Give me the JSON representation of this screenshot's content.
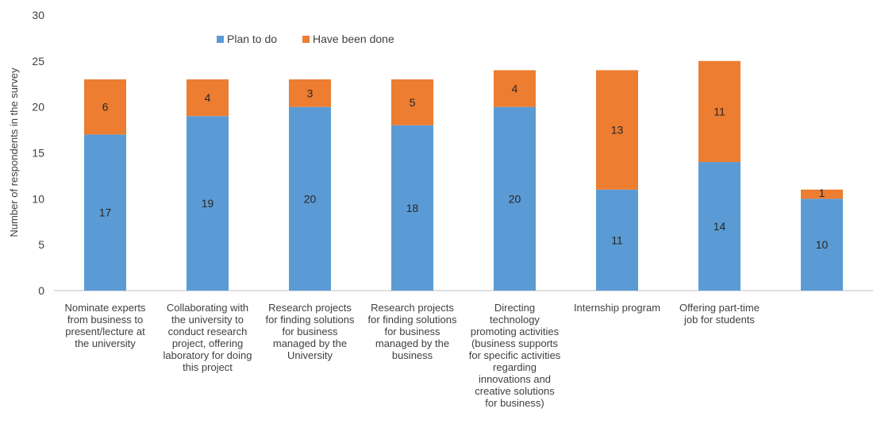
{
  "chart_data": {
    "type": "bar",
    "stacked": true,
    "title": "",
    "xlabel": "",
    "ylabel": "Number of respondents in the survey",
    "ylim": [
      0,
      30
    ],
    "yticks": [
      0,
      5,
      10,
      15,
      20,
      25,
      30
    ],
    "grid": false,
    "legend_position": "top-center",
    "categories": [
      [
        "Nominate experts",
        "from business to",
        "present/lecture at",
        "the university"
      ],
      [
        "Collaborating with",
        "the university to",
        "conduct research",
        "project, offering",
        "laboratory for doing",
        "this project"
      ],
      [
        "Research projects",
        "for finding solutions",
        "for business",
        "managed by the",
        "University"
      ],
      [
        "Research projects",
        "for finding solutions",
        "for business",
        "managed by the",
        "business"
      ],
      [
        "Directing",
        "technology",
        "promoting activities",
        "(business supports",
        "for specific activities",
        "regarding",
        "innovations and",
        "creative solutions",
        "for business)"
      ],
      [
        "Internship program"
      ],
      [
        "Offering part-time",
        "job for students"
      ],
      []
    ],
    "series": [
      {
        "name": "Plan to do",
        "color": "#5b9bd5",
        "values": [
          17,
          19,
          20,
          18,
          20,
          11,
          14,
          10
        ]
      },
      {
        "name": "Have been done",
        "color": "#ed7d31",
        "values": [
          6,
          4,
          3,
          5,
          4,
          13,
          11,
          1
        ]
      }
    ]
  }
}
